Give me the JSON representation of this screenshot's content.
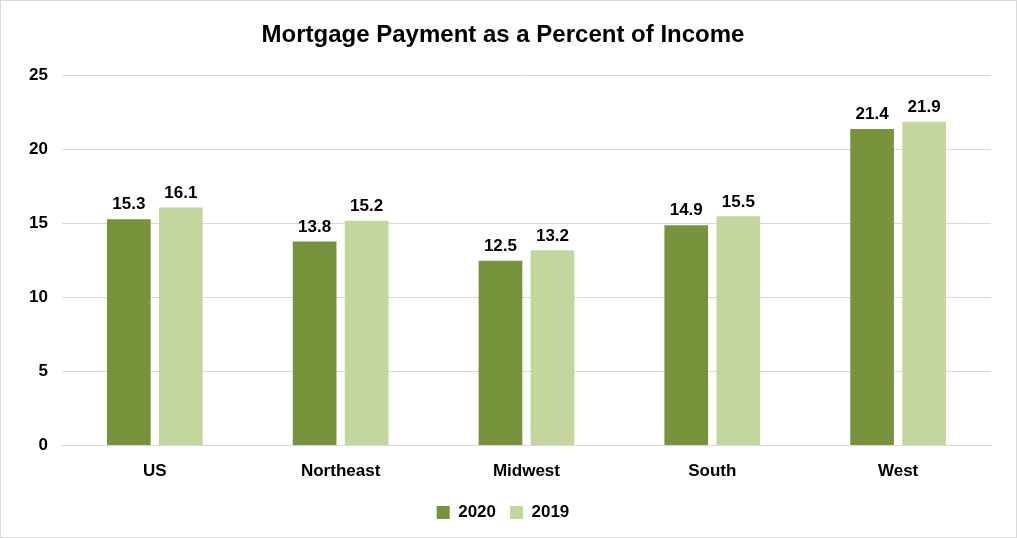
{
  "chart_data": {
    "type": "bar",
    "title": "Mortgage Payment as a Percent of Income",
    "categories": [
      "US",
      "Northeast",
      "Midwest",
      "South",
      "West"
    ],
    "series": [
      {
        "name": "2020",
        "color": "#77933c",
        "values": [
          15.3,
          13.8,
          12.5,
          14.9,
          21.4
        ]
      },
      {
        "name": "2019",
        "color": "#c3d69b",
        "values": [
          16.1,
          15.2,
          13.2,
          15.5,
          21.9
        ]
      }
    ],
    "ylim": [
      0,
      25
    ],
    "yticks": [
      0,
      5,
      10,
      15,
      20,
      25
    ],
    "grid": true,
    "legend": "bottom",
    "data_labels": true
  }
}
